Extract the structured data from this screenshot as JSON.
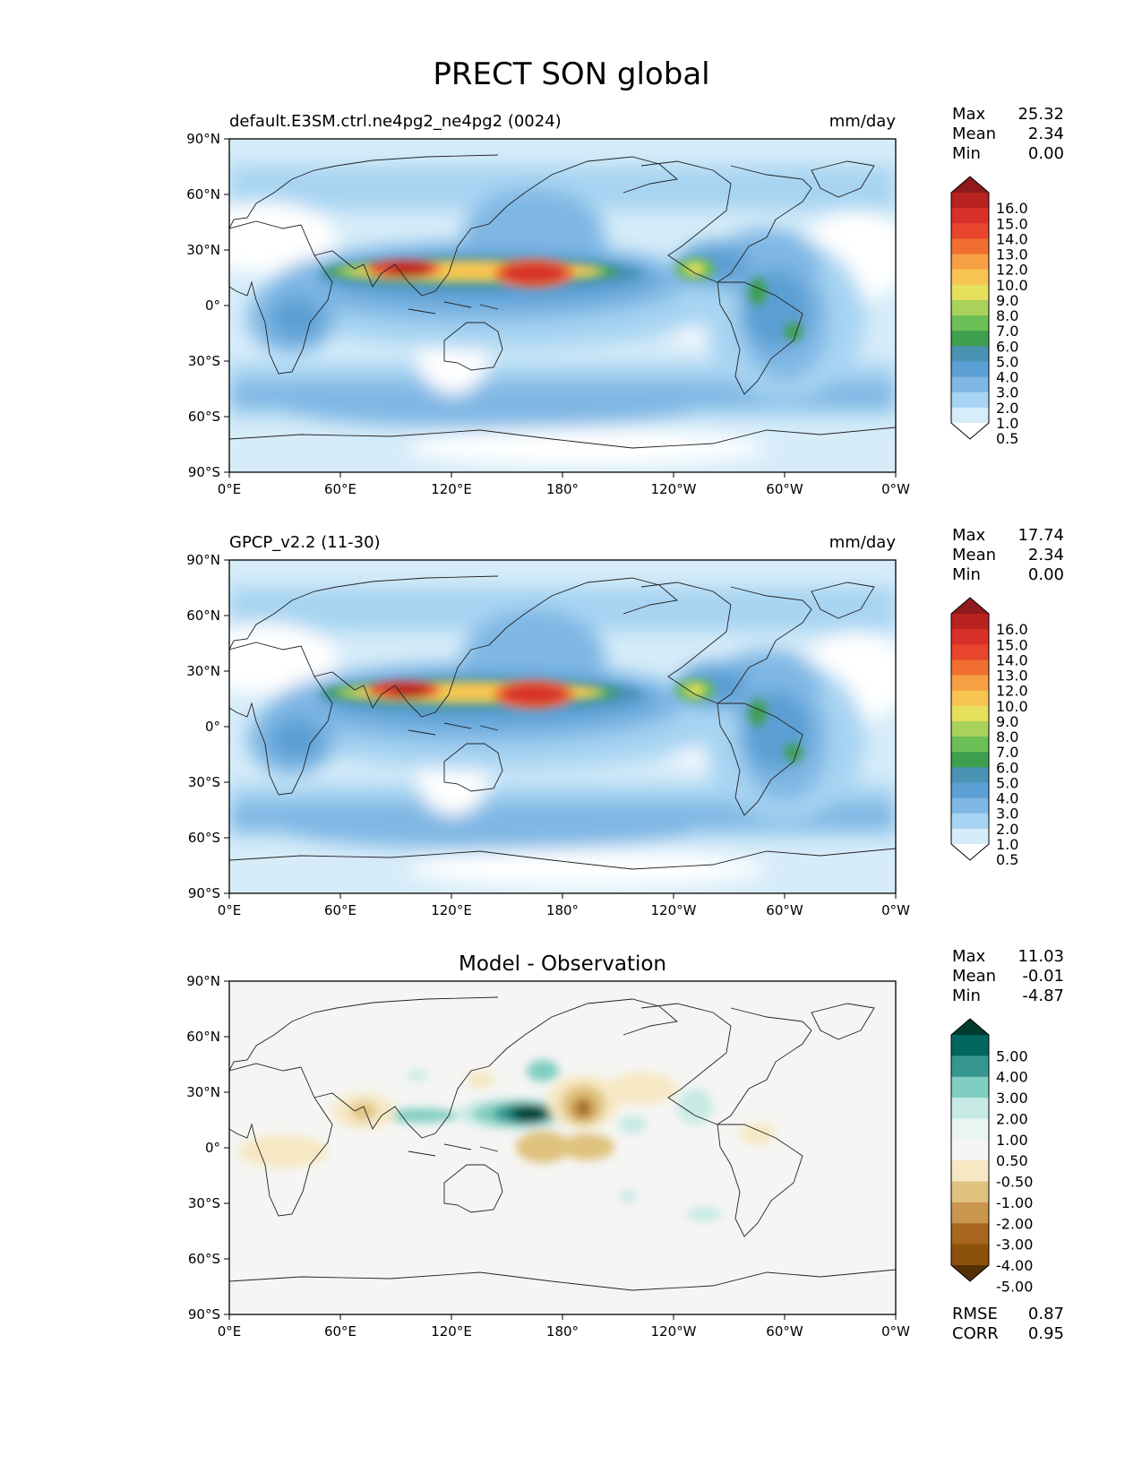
{
  "figure": {
    "title": "PRECT SON global"
  },
  "axes": {
    "lat_ticks": [
      "90°N",
      "60°N",
      "30°N",
      "0°",
      "30°S",
      "60°S",
      "90°S"
    ],
    "lon_ticks": [
      "0°E",
      "60°E",
      "120°E",
      "180°",
      "120°W",
      "60°W",
      "0°W"
    ]
  },
  "panels": [
    {
      "title_left": "default.E3SM.ctrl.ne4pg2_ne4pg2 (0024)",
      "title_center": "",
      "units": "mm/day",
      "stats": {
        "labels": [
          "Max",
          "Mean",
          "Min"
        ],
        "values": [
          "25.32",
          "2.34",
          "0.00"
        ]
      },
      "colorbar": {
        "labels": [
          "16.0",
          "15.0",
          "14.0",
          "13.0",
          "12.0",
          "10.0",
          "9.0",
          "8.0",
          "7.0",
          "6.0",
          "5.0",
          "4.0",
          "3.0",
          "2.0",
          "1.0",
          "0.5"
        ],
        "colors": [
          "#8e1a1c",
          "#b8221f",
          "#d7302a",
          "#e7452c",
          "#f06e30",
          "#f7a043",
          "#f9c552",
          "#e6e05c",
          "#a9d25a",
          "#6cbe57",
          "#3e9f4f",
          "#4a93b3",
          "#5c9fd4",
          "#7fb7e4",
          "#a7d4f2",
          "#d6ecf9",
          "#ffffff"
        ]
      },
      "map_data": {
        "variable": "PRECT",
        "season": "SON",
        "units": "mm/day",
        "max": 25.32,
        "mean": 2.34,
        "min": 0.0,
        "levels": [
          0.5,
          1.0,
          2.0,
          3.0,
          4.0,
          5.0,
          6.0,
          7.0,
          8.0,
          9.0,
          10.0,
          12.0,
          13.0,
          14.0,
          15.0,
          16.0
        ]
      }
    },
    {
      "title_left": "GPCP_v2.2 (11-30)",
      "title_center": "",
      "units": "mm/day",
      "stats": {
        "labels": [
          "Max",
          "Mean",
          "Min"
        ],
        "values": [
          "17.74",
          "2.34",
          "0.00"
        ]
      },
      "colorbar": {
        "labels": [
          "16.0",
          "15.0",
          "14.0",
          "13.0",
          "12.0",
          "10.0",
          "9.0",
          "8.0",
          "7.0",
          "6.0",
          "5.0",
          "4.0",
          "3.0",
          "2.0",
          "1.0",
          "0.5"
        ],
        "colors": [
          "#8e1a1c",
          "#b8221f",
          "#d7302a",
          "#e7452c",
          "#f06e30",
          "#f7a043",
          "#f9c552",
          "#e6e05c",
          "#a9d25a",
          "#6cbe57",
          "#3e9f4f",
          "#4a93b3",
          "#5c9fd4",
          "#7fb7e4",
          "#a7d4f2",
          "#d6ecf9",
          "#ffffff"
        ]
      },
      "map_data": {
        "variable": "PRECT",
        "season": "SON",
        "units": "mm/day",
        "max": 17.74,
        "mean": 2.34,
        "min": 0.0,
        "levels": [
          0.5,
          1.0,
          2.0,
          3.0,
          4.0,
          5.0,
          6.0,
          7.0,
          8.0,
          9.0,
          10.0,
          12.0,
          13.0,
          14.0,
          15.0,
          16.0
        ]
      }
    },
    {
      "title_left": "",
      "title_center": "Model - Observation",
      "units": "",
      "stats": {
        "labels": [
          "Max",
          "Mean",
          "Min"
        ],
        "values": [
          "11.03",
          "-0.01",
          "-4.87"
        ]
      },
      "colorbar": {
        "labels": [
          "5.00",
          "4.00",
          "3.00",
          "2.00",
          "1.00",
          "0.50",
          "-0.50",
          "-1.00",
          "-2.00",
          "-3.00",
          "-4.00",
          "-5.00"
        ],
        "colors": [
          "#003c30",
          "#01665e",
          "#35978f",
          "#80cdc1",
          "#c7eae5",
          "#e8f5f2",
          "#f5f5f3",
          "#f6e8c3",
          "#dfc27d",
          "#c9964e",
          "#a8661f",
          "#8c510a",
          "#543005"
        ]
      },
      "extra_stats": {
        "labels": [
          "RMSE",
          "CORR"
        ],
        "values": [
          "0.87",
          "0.95"
        ]
      },
      "map_data": {
        "variable": "PRECT difference",
        "season": "SON",
        "max": 11.03,
        "mean": -0.01,
        "min": -4.87,
        "rmse": 0.87,
        "corr": 0.95,
        "levels": [
          -5.0,
          -4.0,
          -3.0,
          -2.0,
          -1.0,
          -0.5,
          0.5,
          1.0,
          2.0,
          3.0,
          4.0,
          5.0
        ]
      }
    }
  ]
}
